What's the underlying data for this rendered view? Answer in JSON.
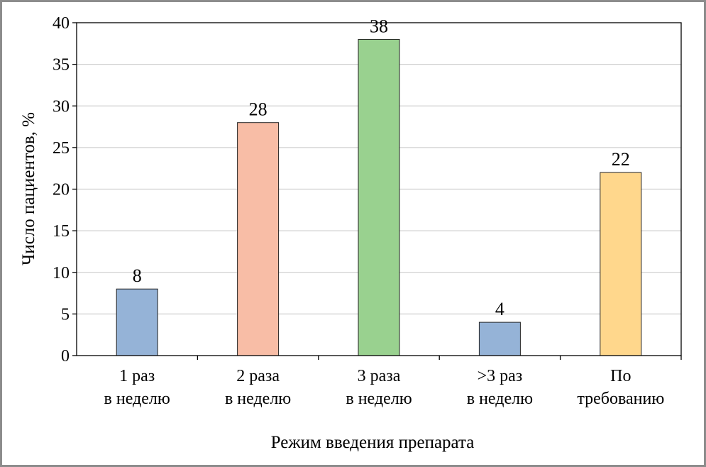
{
  "chart_data": {
    "type": "bar",
    "categories": [
      [
        "1 раз",
        "в неделю"
      ],
      [
        "2 раза",
        "в неделю"
      ],
      [
        "3 раза",
        "в неделю"
      ],
      [
        ">3 раз",
        "в неделю"
      ],
      [
        "По",
        "требованию"
      ]
    ],
    "values": [
      8,
      28,
      38,
      4,
      22
    ],
    "data_labels": [
      "8",
      "28",
      "38",
      "4",
      "22"
    ],
    "bar_colors": [
      "#95b3d7",
      "#f8bda6",
      "#99d18f",
      "#95b3d7",
      "#ffd78c"
    ],
    "title": "",
    "xlabel": "Режим введения препарата",
    "ylabel": "Число пациентов, %",
    "ylim": [
      0,
      40
    ],
    "yticks": [
      0,
      5,
      10,
      15,
      20,
      25,
      30,
      35,
      40
    ],
    "grid": true,
    "legend": "none"
  }
}
